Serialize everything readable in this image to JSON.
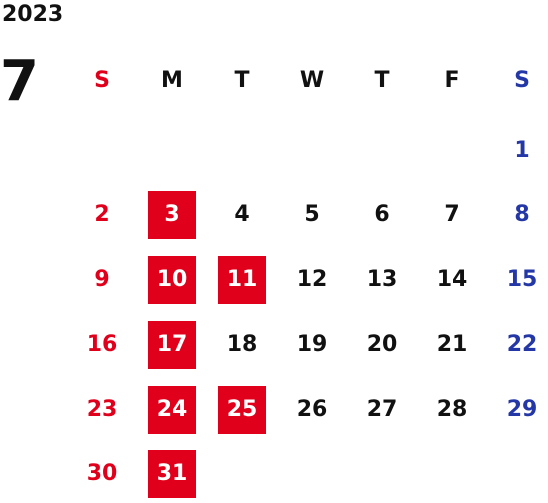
{
  "calendar": {
    "year": "2023",
    "month": "7",
    "weekdays": [
      "S",
      "M",
      "T",
      "W",
      "T",
      "F",
      "S"
    ],
    "weeks": [
      [
        "",
        "",
        "",
        "",
        "",
        "",
        "1"
      ],
      [
        "2",
        "3",
        "4",
        "5",
        "6",
        "7",
        "8"
      ],
      [
        "9",
        "10",
        "11",
        "12",
        "13",
        "14",
        "15"
      ],
      [
        "16",
        "17",
        "18",
        "19",
        "20",
        "21",
        "22"
      ],
      [
        "23",
        "24",
        "25",
        "26",
        "27",
        "28",
        "29"
      ],
      [
        "30",
        "31",
        "",
        "",
        "",
        "",
        ""
      ]
    ],
    "highlighted_days": [
      "3",
      "10",
      "11",
      "17",
      "24",
      "25",
      "31"
    ],
    "colors": {
      "sunday": "#e0001b",
      "saturday": "#2437a6",
      "highlight_bg": "#e0001b",
      "highlight_text": "#ffffff",
      "text": "#111111"
    }
  }
}
